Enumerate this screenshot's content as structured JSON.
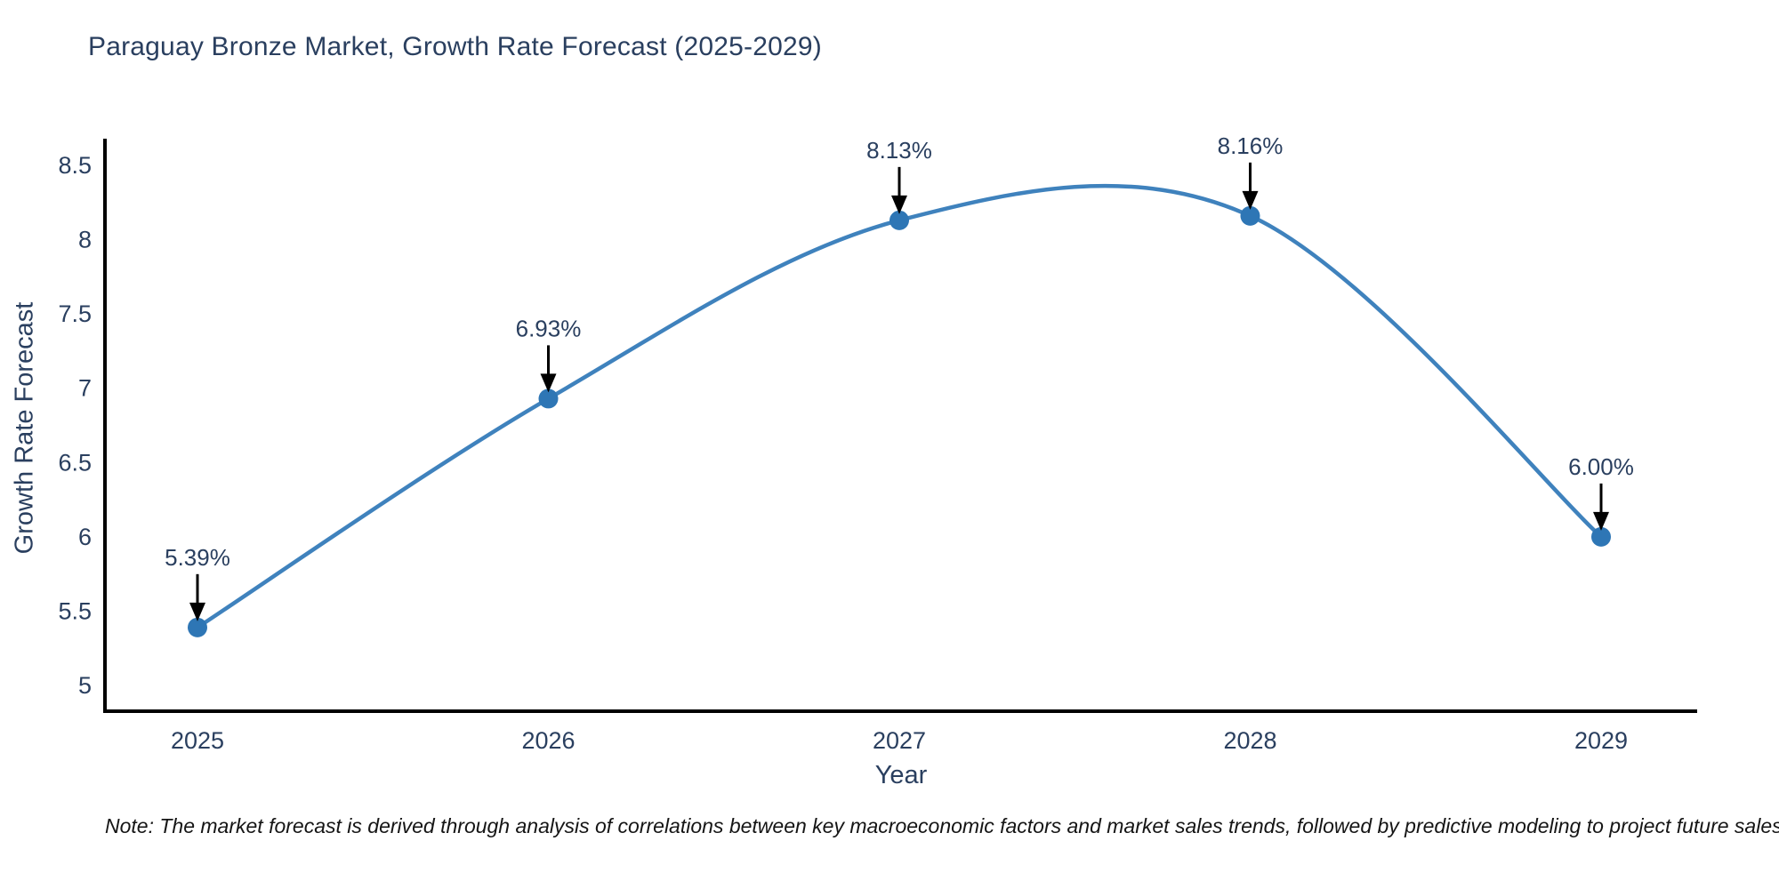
{
  "title": "Paraguay Bronze Market, Growth Rate Forecast (2025-2029)",
  "note": "Note: The market forecast is derived through analysis of correlations between key macroeconomic factors and market sales trends, followed by predictive modeling to project future sales",
  "chart_data": {
    "type": "line",
    "title": "Paraguay Bronze Market, Growth Rate Forecast (2025-2029)",
    "xlabel": "Year",
    "ylabel": "Growth Rate Forecast",
    "x": [
      2025,
      2026,
      2027,
      2028,
      2029
    ],
    "values": [
      5.39,
      6.93,
      8.13,
      8.16,
      6.0
    ],
    "point_labels": [
      "5.39%",
      "6.93%",
      "8.13%",
      "8.16%",
      "6.00%"
    ],
    "x_ticks": [
      {
        "value": 2025,
        "label": "2025"
      },
      {
        "value": 2026,
        "label": "2026"
      },
      {
        "value": 2027,
        "label": "2027"
      },
      {
        "value": 2028,
        "label": "2028"
      },
      {
        "value": 2029,
        "label": "2029"
      }
    ],
    "y_ticks": [
      {
        "value": 8.5,
        "label": "8.5"
      },
      {
        "value": 8.0,
        "label": "8"
      },
      {
        "value": 7.5,
        "label": "7.5"
      },
      {
        "value": 7.0,
        "label": "7"
      },
      {
        "value": 6.5,
        "label": "6.5"
      },
      {
        "value": 6.0,
        "label": "6"
      },
      {
        "value": 5.5,
        "label": "5.5"
      },
      {
        "value": 5.0,
        "label": "5"
      }
    ],
    "ylim": [
      4.83,
      8.67
    ],
    "xlim": [
      2024.74,
      2029.27
    ],
    "grid": false,
    "legend": "none",
    "smooth": true,
    "colors": {
      "line": "#3f82bd",
      "marker": "#2e76b5",
      "axis": "#000000",
      "tick_text": "#2a3f5f",
      "annotation_text": "#2a3f5f",
      "annotation_arrow": "#000000"
    }
  }
}
